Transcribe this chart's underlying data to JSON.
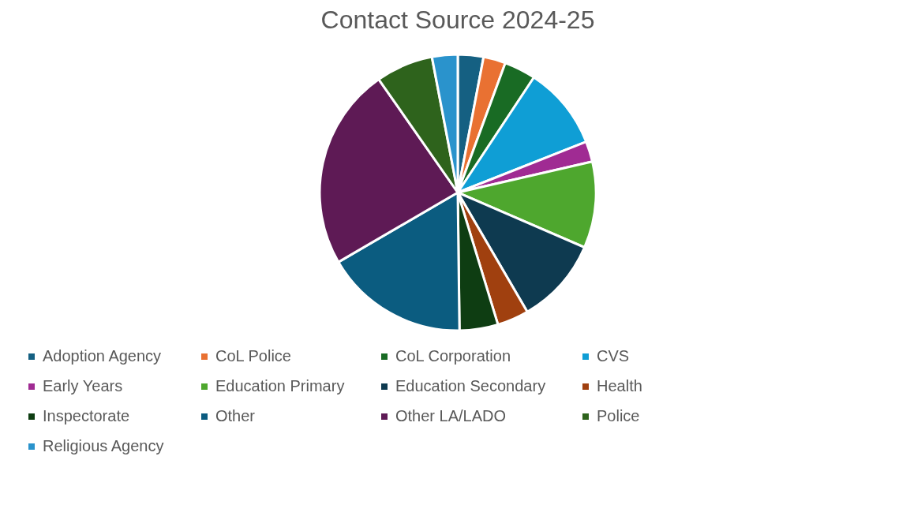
{
  "chart_data": {
    "type": "pie",
    "title": "Contact Source 2024-25",
    "categories": [
      "Adoption Agency",
      "CoL Police",
      "CoL Corporation",
      "CVS",
      "Early Years",
      "Education Primary",
      "Education Secondary",
      "Health",
      "Inspectorate",
      "Other",
      "Other LA/LADO",
      "Police",
      "Religious Agency"
    ],
    "values": [
      3.0,
      2.6,
      3.7,
      9.7,
      2.4,
      10.1,
      10.1,
      3.7,
      4.5,
      16.8,
      23.7,
      6.7,
      3.0
    ],
    "colors": [
      "#156082",
      "#e97132",
      "#196b24",
      "#0f9ed5",
      "#a02b93",
      "#4ea72e",
      "#0e3a50",
      "#a0400f",
      "#0e3d12",
      "#0b5c80",
      "#5e1a55",
      "#2e631c",
      "#2a93cc"
    ],
    "legend": "bottom"
  }
}
